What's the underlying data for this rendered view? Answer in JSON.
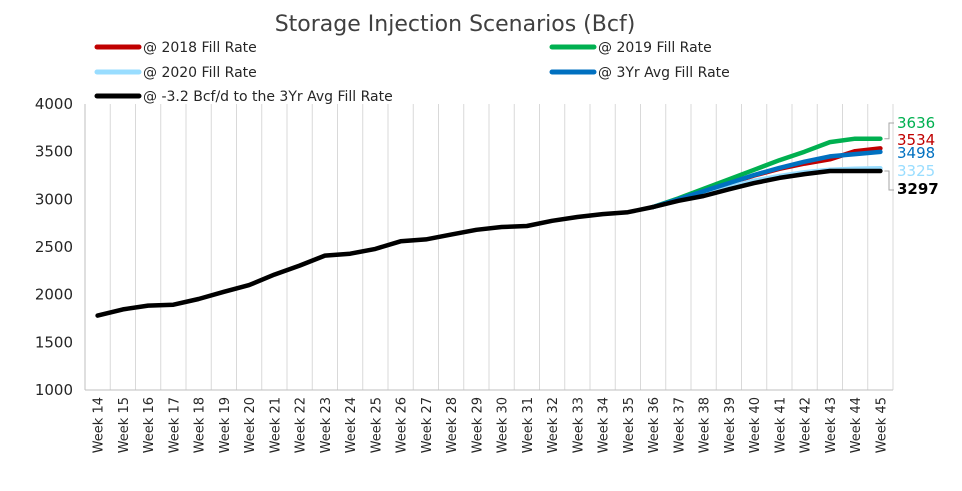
{
  "chart_data": {
    "type": "line",
    "title": "Storage Injection Scenarios (Bcf)",
    "xlabel": "",
    "ylabel": "",
    "ylim": [
      1000,
      4000
    ],
    "y_ticks": [
      "1000",
      "1500",
      "2000",
      "2500",
      "3000",
      "3500",
      "4000"
    ],
    "grid": "vertical",
    "legend_position": "top",
    "categories": [
      "Week 14",
      "Week 15",
      "Week 16",
      "Week 17",
      "Week 18",
      "Week 19",
      "Week 20",
      "Week 21",
      "Week 22",
      "Week 23",
      "Week 24",
      "Week 25",
      "Week 26",
      "Week 27",
      "Week 28",
      "Week 29",
      "Week 30",
      "Week 31",
      "Week 32",
      "Week 33",
      "Week 34",
      "Week 35",
      "Week 36",
      "Week 37",
      "Week 38",
      "Week 39",
      "Week 40",
      "Week 41",
      "Week 42",
      "Week 43",
      "Week 44",
      "Week 45"
    ],
    "series": [
      {
        "name": "@ 2018 Fill Rate",
        "color": "#c00000",
        "end_label": "3534",
        "values": [
          null,
          null,
          null,
          null,
          null,
          null,
          null,
          null,
          null,
          null,
          null,
          null,
          null,
          null,
          null,
          null,
          null,
          null,
          null,
          null,
          null,
          null,
          2920,
          2990,
          3080,
          3165,
          3250,
          3320,
          3375,
          3420,
          3505,
          3534
        ]
      },
      {
        "name": "@ 2019 Fill Rate",
        "color": "#00b050",
        "end_label": "3636",
        "values": [
          null,
          null,
          null,
          null,
          null,
          null,
          null,
          null,
          null,
          null,
          null,
          null,
          null,
          null,
          null,
          null,
          null,
          null,
          null,
          null,
          null,
          null,
          2920,
          3010,
          3110,
          3210,
          3310,
          3410,
          3500,
          3600,
          3636,
          3636
        ]
      },
      {
        "name": "@ 2020 Fill Rate",
        "color": "#99ddff",
        "end_label": "3325",
        "values": [
          null,
          null,
          null,
          null,
          null,
          null,
          null,
          null,
          null,
          null,
          null,
          null,
          null,
          null,
          null,
          null,
          null,
          null,
          null,
          null,
          null,
          null,
          2920,
          2990,
          3060,
          3130,
          3195,
          3245,
          3285,
          3310,
          3320,
          3325
        ]
      },
      {
        "name": "@ 3Yr Avg Fill Rate",
        "color": "#0070c0",
        "end_label": "3498",
        "values": [
          null,
          null,
          null,
          null,
          null,
          null,
          null,
          null,
          null,
          null,
          null,
          null,
          null,
          null,
          null,
          null,
          null,
          null,
          null,
          null,
          null,
          null,
          2920,
          3000,
          3085,
          3170,
          3255,
          3330,
          3395,
          3450,
          3475,
          3498
        ]
      },
      {
        "name": "@ -3.2 Bcf/d to the 3Yr Avg Fill Rate",
        "color": "#000000",
        "end_label": "3297",
        "values": [
          1780,
          1845,
          1885,
          1895,
          1955,
          2030,
          2100,
          2210,
          2305,
          2410,
          2430,
          2480,
          2560,
          2580,
          2630,
          2680,
          2710,
          2720,
          2775,
          2815,
          2845,
          2865,
          2920,
          2985,
          3035,
          3105,
          3170,
          3225,
          3265,
          3297,
          3297,
          3297
        ]
      }
    ]
  }
}
